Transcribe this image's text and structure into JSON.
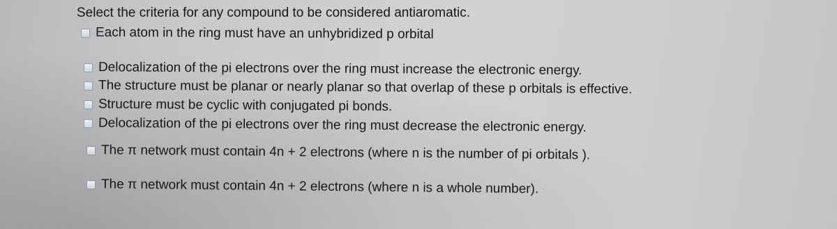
{
  "question": "Select the criteria for any compound to be considered antiaromatic.",
  "options": [
    "Each atom in the ring must have an unhybridized p orbital",
    "Delocalization of the pi electrons over the ring must increase the electronic energy.",
    "The structure must be planar or nearly planar so that overlap of these p orbitals is effective.",
    "Structure must be cyclic with conjugated pi bonds.",
    "Delocalization of the pi electrons over the ring must decrease the electronic energy.",
    "The π network must contain 4n + 2 electrons (where n is the number of pi orbitals ).",
    "The π network must contain 4n + 2 electrons (where n is a whole number)."
  ]
}
